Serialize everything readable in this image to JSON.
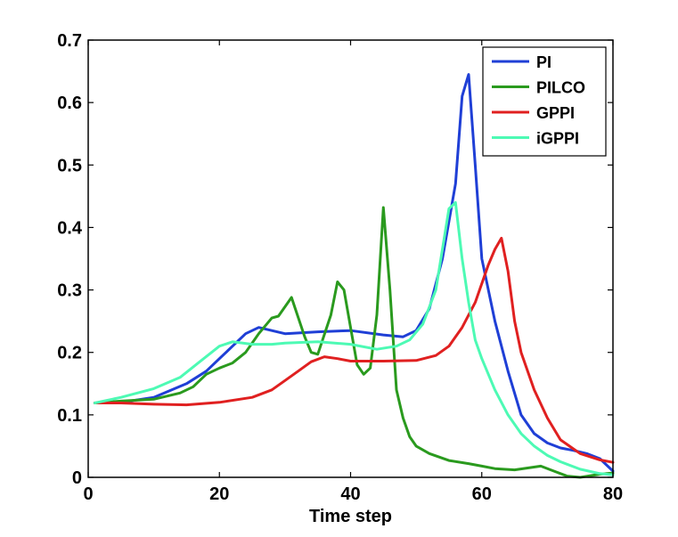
{
  "chart_data": {
    "type": "line",
    "title": "",
    "xlabel": "Time step",
    "ylabel": "",
    "xlim": [
      0,
      80
    ],
    "ylim": [
      0,
      0.7
    ],
    "xticks": [
      "0",
      "20",
      "40",
      "60",
      "80"
    ],
    "yticks": [
      "0",
      "0.1",
      "0.2",
      "0.3",
      "0.4",
      "0.5",
      "0.6",
      "0.7"
    ],
    "grid": false,
    "legend_position": "top-right",
    "series": [
      {
        "name": "PI",
        "color": "#1f3fd6",
        "x": [
          1,
          5,
          10,
          15,
          18,
          20,
          22,
          24,
          26,
          28,
          30,
          35,
          40,
          45,
          48,
          50,
          52,
          54,
          56,
          57,
          58,
          59,
          60,
          62,
          64,
          66,
          68,
          70,
          72,
          74,
          76,
          78,
          80
        ],
        "y": [
          0.119,
          0.12,
          0.128,
          0.15,
          0.17,
          0.19,
          0.21,
          0.23,
          0.24,
          0.235,
          0.23,
          0.233,
          0.235,
          0.228,
          0.225,
          0.235,
          0.27,
          0.35,
          0.47,
          0.61,
          0.645,
          0.5,
          0.35,
          0.25,
          0.17,
          0.1,
          0.07,
          0.055,
          0.047,
          0.043,
          0.038,
          0.03,
          0.01
        ]
      },
      {
        "name": "PILCO",
        "color": "#2a9a1e",
        "x": [
          1,
          5,
          10,
          14,
          16,
          18,
          20,
          22,
          24,
          26,
          28,
          29,
          31,
          33,
          34,
          35,
          37,
          38,
          39,
          40,
          41,
          42,
          43,
          44,
          45,
          46,
          47,
          48,
          49,
          50,
          52,
          55,
          58,
          60,
          62,
          65,
          67,
          69,
          71,
          73,
          75,
          78,
          80
        ],
        "y": [
          0.119,
          0.122,
          0.125,
          0.135,
          0.145,
          0.165,
          0.175,
          0.183,
          0.2,
          0.23,
          0.255,
          0.258,
          0.288,
          0.225,
          0.2,
          0.197,
          0.26,
          0.313,
          0.3,
          0.24,
          0.18,
          0.165,
          0.175,
          0.26,
          0.432,
          0.3,
          0.14,
          0.095,
          0.065,
          0.05,
          0.038,
          0.027,
          0.022,
          0.018,
          0.014,
          0.012,
          0.015,
          0.018,
          0.01,
          0.002,
          0.0,
          0.005,
          0.007
        ]
      },
      {
        "name": "GPPI",
        "color": "#e02020",
        "x": [
          1,
          5,
          10,
          15,
          20,
          25,
          28,
          30,
          32,
          34,
          36,
          38,
          40,
          45,
          50,
          53,
          55,
          57,
          59,
          61,
          62,
          63,
          64,
          65,
          66,
          68,
          70,
          72,
          75,
          78,
          80
        ],
        "y": [
          0.119,
          0.119,
          0.117,
          0.116,
          0.12,
          0.128,
          0.14,
          0.155,
          0.17,
          0.185,
          0.193,
          0.19,
          0.186,
          0.186,
          0.187,
          0.195,
          0.21,
          0.24,
          0.28,
          0.34,
          0.365,
          0.383,
          0.33,
          0.25,
          0.2,
          0.14,
          0.095,
          0.06,
          0.038,
          0.028,
          0.024
        ]
      },
      {
        "name": "iGPPI",
        "color": "#4dfab4",
        "x": [
          1,
          5,
          10,
          14,
          17,
          20,
          22,
          25,
          28,
          30,
          35,
          40,
          44,
          47,
          49,
          51,
          53,
          55,
          56,
          57,
          58,
          59,
          60,
          62,
          64,
          66,
          68,
          70,
          72,
          75,
          78,
          80
        ],
        "y": [
          0.119,
          0.128,
          0.142,
          0.16,
          0.185,
          0.21,
          0.217,
          0.213,
          0.213,
          0.215,
          0.217,
          0.213,
          0.205,
          0.21,
          0.22,
          0.245,
          0.3,
          0.43,
          0.44,
          0.35,
          0.28,
          0.22,
          0.19,
          0.14,
          0.1,
          0.07,
          0.05,
          0.035,
          0.025,
          0.013,
          0.006,
          0.004
        ]
      }
    ]
  }
}
